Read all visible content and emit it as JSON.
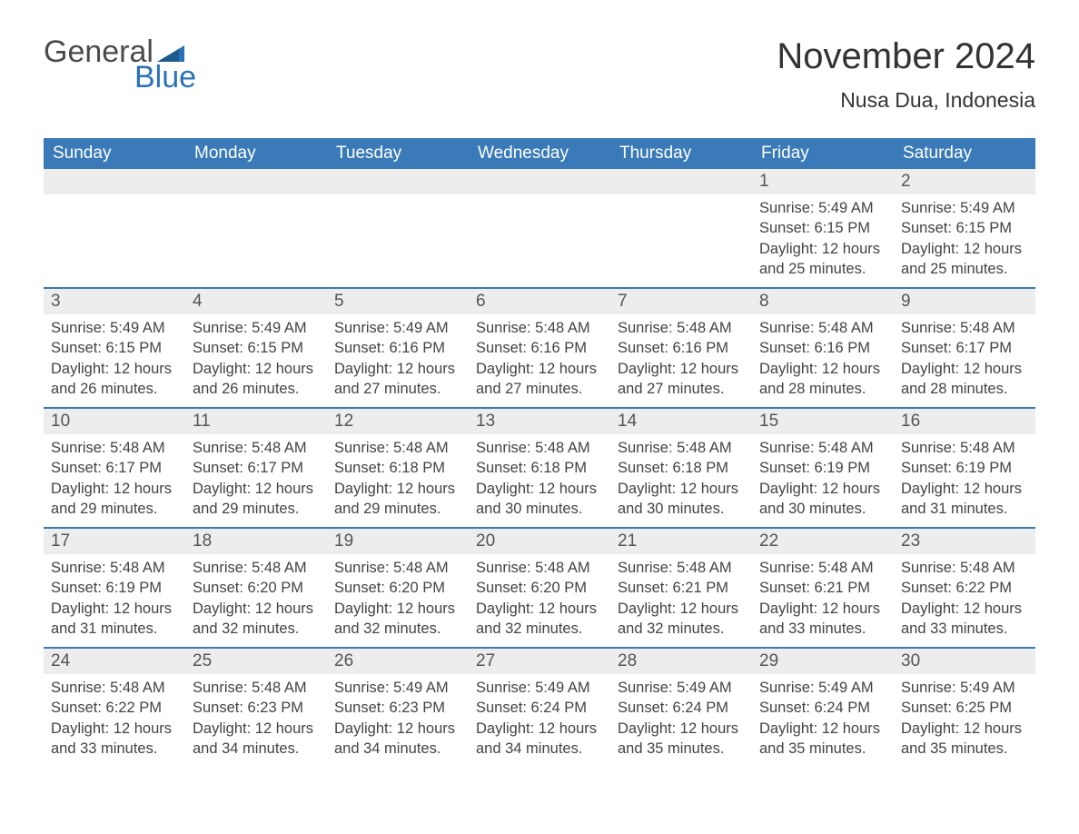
{
  "logo": {
    "text1": "General",
    "text2": "Blue"
  },
  "title": "November 2024",
  "location": "Nusa Dua, Indonesia",
  "colors": {
    "header_bg": "#3a7ab8",
    "header_text": "#ffffff",
    "daynum_bg": "#ededed",
    "row_border": "#3a7ab8",
    "body_text": "#444444",
    "title_text": "#333333",
    "logo_gray": "#4a4a4a",
    "logo_blue": "#2a72b5",
    "page_bg": "#ffffff"
  },
  "fonts": {
    "title_size_pt": 30,
    "location_size_pt": 17,
    "dayheader_size_pt": 14,
    "daynum_size_pt": 14,
    "body_size_pt": 12
  },
  "day_headers": [
    "Sunday",
    "Monday",
    "Tuesday",
    "Wednesday",
    "Thursday",
    "Friday",
    "Saturday"
  ],
  "weeks": [
    [
      {
        "blank": true
      },
      {
        "blank": true
      },
      {
        "blank": true
      },
      {
        "blank": true
      },
      {
        "blank": true
      },
      {
        "n": "1",
        "sunrise": "5:49 AM",
        "sunset": "6:15 PM",
        "daylight": "12 hours and 25 minutes."
      },
      {
        "n": "2",
        "sunrise": "5:49 AM",
        "sunset": "6:15 PM",
        "daylight": "12 hours and 25 minutes."
      }
    ],
    [
      {
        "n": "3",
        "sunrise": "5:49 AM",
        "sunset": "6:15 PM",
        "daylight": "12 hours and 26 minutes."
      },
      {
        "n": "4",
        "sunrise": "5:49 AM",
        "sunset": "6:15 PM",
        "daylight": "12 hours and 26 minutes."
      },
      {
        "n": "5",
        "sunrise": "5:49 AM",
        "sunset": "6:16 PM",
        "daylight": "12 hours and 27 minutes."
      },
      {
        "n": "6",
        "sunrise": "5:48 AM",
        "sunset": "6:16 PM",
        "daylight": "12 hours and 27 minutes."
      },
      {
        "n": "7",
        "sunrise": "5:48 AM",
        "sunset": "6:16 PM",
        "daylight": "12 hours and 27 minutes."
      },
      {
        "n": "8",
        "sunrise": "5:48 AM",
        "sunset": "6:16 PM",
        "daylight": "12 hours and 28 minutes."
      },
      {
        "n": "9",
        "sunrise": "5:48 AM",
        "sunset": "6:17 PM",
        "daylight": "12 hours and 28 minutes."
      }
    ],
    [
      {
        "n": "10",
        "sunrise": "5:48 AM",
        "sunset": "6:17 PM",
        "daylight": "12 hours and 29 minutes."
      },
      {
        "n": "11",
        "sunrise": "5:48 AM",
        "sunset": "6:17 PM",
        "daylight": "12 hours and 29 minutes."
      },
      {
        "n": "12",
        "sunrise": "5:48 AM",
        "sunset": "6:18 PM",
        "daylight": "12 hours and 29 minutes."
      },
      {
        "n": "13",
        "sunrise": "5:48 AM",
        "sunset": "6:18 PM",
        "daylight": "12 hours and 30 minutes."
      },
      {
        "n": "14",
        "sunrise": "5:48 AM",
        "sunset": "6:18 PM",
        "daylight": "12 hours and 30 minutes."
      },
      {
        "n": "15",
        "sunrise": "5:48 AM",
        "sunset": "6:19 PM",
        "daylight": "12 hours and 30 minutes."
      },
      {
        "n": "16",
        "sunrise": "5:48 AM",
        "sunset": "6:19 PM",
        "daylight": "12 hours and 31 minutes."
      }
    ],
    [
      {
        "n": "17",
        "sunrise": "5:48 AM",
        "sunset": "6:19 PM",
        "daylight": "12 hours and 31 minutes."
      },
      {
        "n": "18",
        "sunrise": "5:48 AM",
        "sunset": "6:20 PM",
        "daylight": "12 hours and 32 minutes."
      },
      {
        "n": "19",
        "sunrise": "5:48 AM",
        "sunset": "6:20 PM",
        "daylight": "12 hours and 32 minutes."
      },
      {
        "n": "20",
        "sunrise": "5:48 AM",
        "sunset": "6:20 PM",
        "daylight": "12 hours and 32 minutes."
      },
      {
        "n": "21",
        "sunrise": "5:48 AM",
        "sunset": "6:21 PM",
        "daylight": "12 hours and 32 minutes."
      },
      {
        "n": "22",
        "sunrise": "5:48 AM",
        "sunset": "6:21 PM",
        "daylight": "12 hours and 33 minutes."
      },
      {
        "n": "23",
        "sunrise": "5:48 AM",
        "sunset": "6:22 PM",
        "daylight": "12 hours and 33 minutes."
      }
    ],
    [
      {
        "n": "24",
        "sunrise": "5:48 AM",
        "sunset": "6:22 PM",
        "daylight": "12 hours and 33 minutes."
      },
      {
        "n": "25",
        "sunrise": "5:48 AM",
        "sunset": "6:23 PM",
        "daylight": "12 hours and 34 minutes."
      },
      {
        "n": "26",
        "sunrise": "5:49 AM",
        "sunset": "6:23 PM",
        "daylight": "12 hours and 34 minutes."
      },
      {
        "n": "27",
        "sunrise": "5:49 AM",
        "sunset": "6:24 PM",
        "daylight": "12 hours and 34 minutes."
      },
      {
        "n": "28",
        "sunrise": "5:49 AM",
        "sunset": "6:24 PM",
        "daylight": "12 hours and 35 minutes."
      },
      {
        "n": "29",
        "sunrise": "5:49 AM",
        "sunset": "6:24 PM",
        "daylight": "12 hours and 35 minutes."
      },
      {
        "n": "30",
        "sunrise": "5:49 AM",
        "sunset": "6:25 PM",
        "daylight": "12 hours and 35 minutes."
      }
    ]
  ],
  "labels": {
    "sunrise": "Sunrise: ",
    "sunset": "Sunset: ",
    "daylight": "Daylight: "
  }
}
